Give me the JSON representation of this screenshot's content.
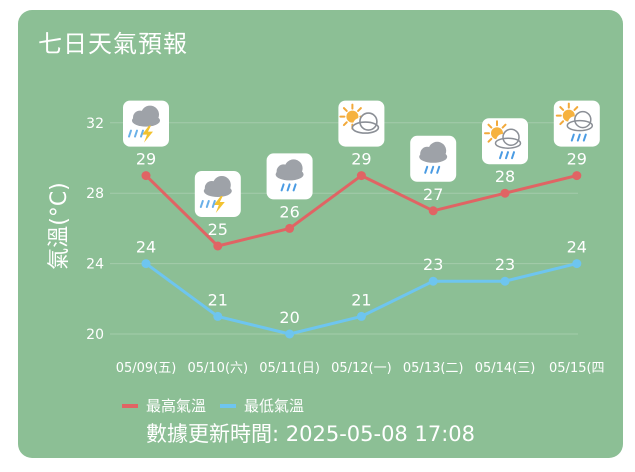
{
  "title": "七日天氣預報",
  "colors": {
    "background": "#8cbf95",
    "high_series": "#e06464",
    "low_series": "#6ec5ef",
    "text": "#ffffff",
    "grid": "#a4ccab"
  },
  "legend": {
    "high_label": "最高氣溫",
    "low_label": "最低氣溫"
  },
  "updated": "數據更新時間: 2025-05-08 17:08",
  "chart_data": {
    "type": "line",
    "title": "",
    "xlabel": "",
    "ylabel": "氣溫(°C)",
    "ylim": [
      18,
      34
    ],
    "yticks": [
      20,
      24,
      28,
      32
    ],
    "grid": true,
    "legend_position": "bottom-left",
    "categories": [
      "05/09(五)",
      "05/10(六)",
      "05/11(日)",
      "05/12(一)",
      "05/13(二)",
      "05/14(三)",
      "05/15(四"
    ],
    "series": [
      {
        "name": "最高氣溫",
        "values": [
          29,
          25,
          26,
          29,
          27,
          28,
          29
        ]
      },
      {
        "name": "最低氣溫",
        "values": [
          24,
          21,
          20,
          21,
          23,
          23,
          24
        ]
      }
    ],
    "weather_icons": [
      "cloud-thunder-icon",
      "cloud-thunder-icon",
      "cloud-rain-icon",
      "sun-cloud-icon",
      "cloud-rain-icon",
      "sun-cloud-rain-icon",
      "sun-cloud-rain-icon"
    ]
  }
}
